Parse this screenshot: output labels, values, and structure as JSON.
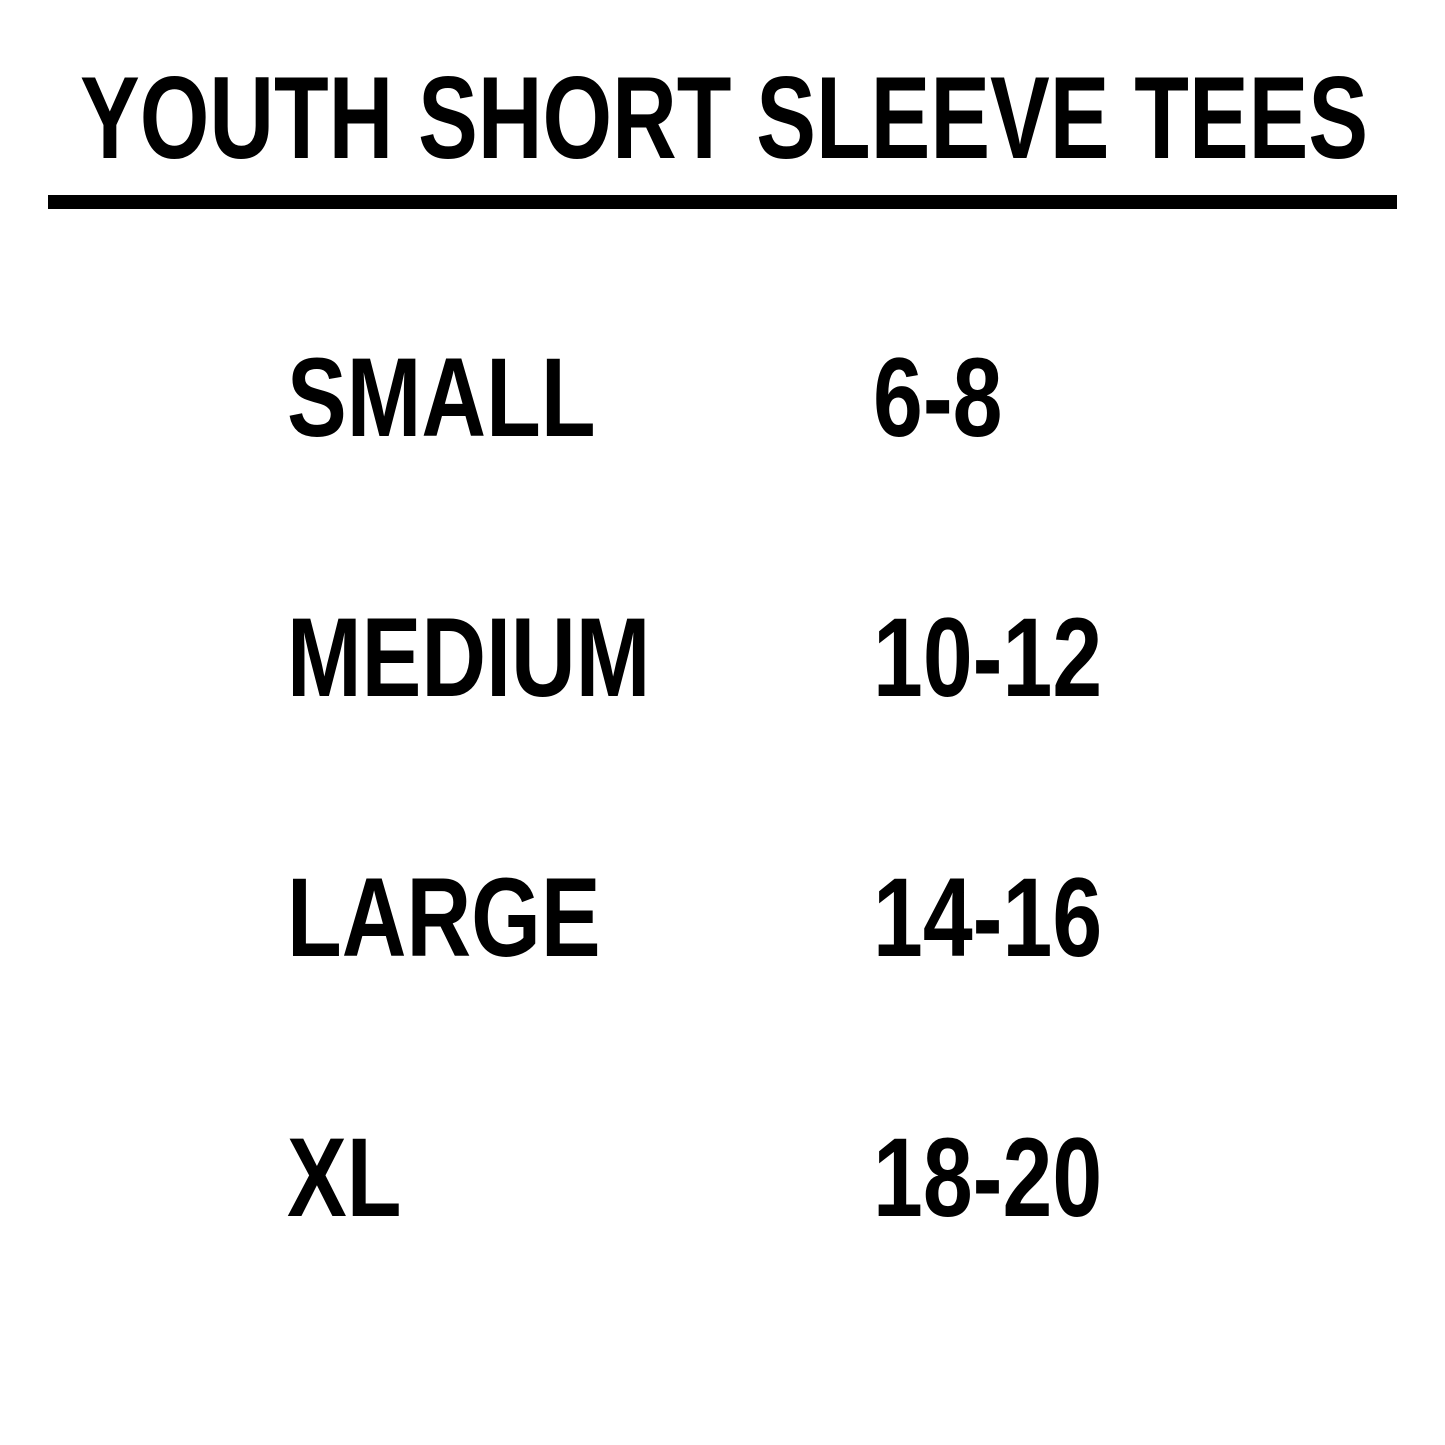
{
  "title": "YOUTH SHORT SLEEVE TEES",
  "colors": {
    "text": "#000000",
    "background": "#ffffff"
  },
  "sizes": [
    {
      "label": "SMALL",
      "range": "6-8"
    },
    {
      "label": "MEDIUM",
      "range": "10-12"
    },
    {
      "label": "LARGE",
      "range": "14-16"
    },
    {
      "label": "XL",
      "range": "18-20"
    }
  ]
}
